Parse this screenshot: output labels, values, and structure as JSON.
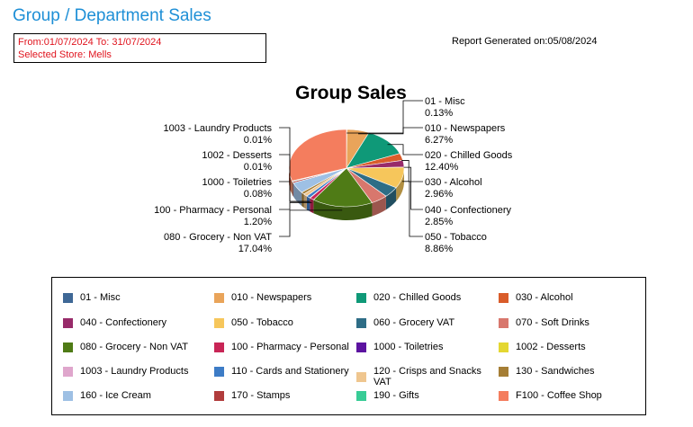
{
  "header": {
    "title": "Group / Department Sales",
    "date_range": "From:01/07/2024 To: 31/07/2024",
    "store": "Selected Store: Mells",
    "generated": "Report Generated on:05/08/2024"
  },
  "chart_data": {
    "type": "pie",
    "title": "Group Sales",
    "slices": [
      {
        "label": "01 - Misc",
        "percent": "0.13%",
        "value": 0.13,
        "color": "#3f6896"
      },
      {
        "label": "010 - Newspapers",
        "percent": "6.27%",
        "value": 6.27,
        "color": "#e9a45a"
      },
      {
        "label": "020 - Chilled Goods",
        "percent": "12.40%",
        "value": 12.4,
        "color": "#0f9978"
      },
      {
        "label": "030 - Alcohol",
        "percent": "2.96%",
        "value": 2.96,
        "color": "#d95c2a"
      },
      {
        "label": "040 - Confectionery",
        "percent": "2.85%",
        "value": 2.85,
        "color": "#982b6a"
      },
      {
        "label": "050 - Tobacco",
        "percent": "8.86%",
        "value": 8.86,
        "color": "#f6c65b"
      },
      {
        "label": "060 - Grocery VAT",
        "percent": "",
        "value": 4.5,
        "color": "#2e6d86"
      },
      {
        "label": "070 - Soft Drinks",
        "percent": "",
        "value": 4.7,
        "color": "#d8776d"
      },
      {
        "label": "080 - Grocery -  Non VAT",
        "percent": "17.04%",
        "value": 17.04,
        "color": "#4f7b16"
      },
      {
        "label": "100 - Pharmacy - Personal",
        "percent": "1.20%",
        "value": 1.2,
        "color": "#c82556"
      },
      {
        "label": "1000 - Toiletries",
        "percent": "0.08%",
        "value": 0.08,
        "color": "#5c13a0"
      },
      {
        "label": "1002 - Desserts",
        "percent": "0.01%",
        "value": 0.01,
        "color": "#e4d732"
      },
      {
        "label": "1003 - Laundry Products",
        "percent": "0.01%",
        "value": 0.01,
        "color": "#dfa6cc"
      },
      {
        "label": "110 - Cards and Stationery",
        "percent": "",
        "value": 1.1,
        "color": "#3d7cc6"
      },
      {
        "label": "120 - Crisps and Snacks VAT",
        "percent": "",
        "value": 1.2,
        "color": "#efc68f"
      },
      {
        "label": "130 - Sandwiches",
        "percent": "",
        "value": 0.9,
        "color": "#a57e35"
      },
      {
        "label": "160 - Ice Cream",
        "percent": "",
        "value": 4.5,
        "color": "#9ec0e4"
      },
      {
        "label": "170 - Stamps",
        "percent": "",
        "value": 0.6,
        "color": "#b13c3c"
      },
      {
        "label": "190 - Gifts",
        "percent": "",
        "value": 0.3,
        "color": "#38cc96"
      },
      {
        "label": "F100 - Coffee Shop",
        "percent": "",
        "value": 30.4,
        "color": "#f47d5e"
      }
    ]
  },
  "legend": {
    "items": [
      {
        "label": "01 - Misc",
        "color": "#3f6896"
      },
      {
        "label": "010 - Newspapers",
        "color": "#e9a45a"
      },
      {
        "label": "020 - Chilled Goods",
        "color": "#0f9978"
      },
      {
        "label": "030 - Alcohol",
        "color": "#d95c2a"
      },
      {
        "label": "040 - Confectionery",
        "color": "#982b6a"
      },
      {
        "label": "050 - Tobacco",
        "color": "#f6c65b"
      },
      {
        "label": "060 - Grocery VAT",
        "color": "#2e6d86"
      },
      {
        "label": "070 - Soft Drinks",
        "color": "#d8776d"
      },
      {
        "label": "080 - Grocery -  Non VAT",
        "color": "#4f7b16"
      },
      {
        "label": "100 - Pharmacy - Personal",
        "color": "#c82556"
      },
      {
        "label": "1000 - Toiletries",
        "color": "#5c13a0"
      },
      {
        "label": "1002 - Desserts",
        "color": "#e4d732"
      },
      {
        "label": "1003 - Laundry Products",
        "color": "#dfa6cc"
      },
      {
        "label": "110 - Cards and Stationery",
        "color": "#3d7cc6"
      },
      {
        "label": "120 - Crisps and Snacks VAT",
        "color": "#efc68f"
      },
      {
        "label": "130 - Sandwiches",
        "color": "#a57e35"
      },
      {
        "label": "160 - Ice Cream",
        "color": "#9ec0e4"
      },
      {
        "label": "170 - Stamps",
        "color": "#b13c3c"
      },
      {
        "label": "190 - Gifts",
        "color": "#38cc96"
      },
      {
        "label": "F100 - Coffee Shop",
        "color": "#f47d5e"
      }
    ]
  }
}
